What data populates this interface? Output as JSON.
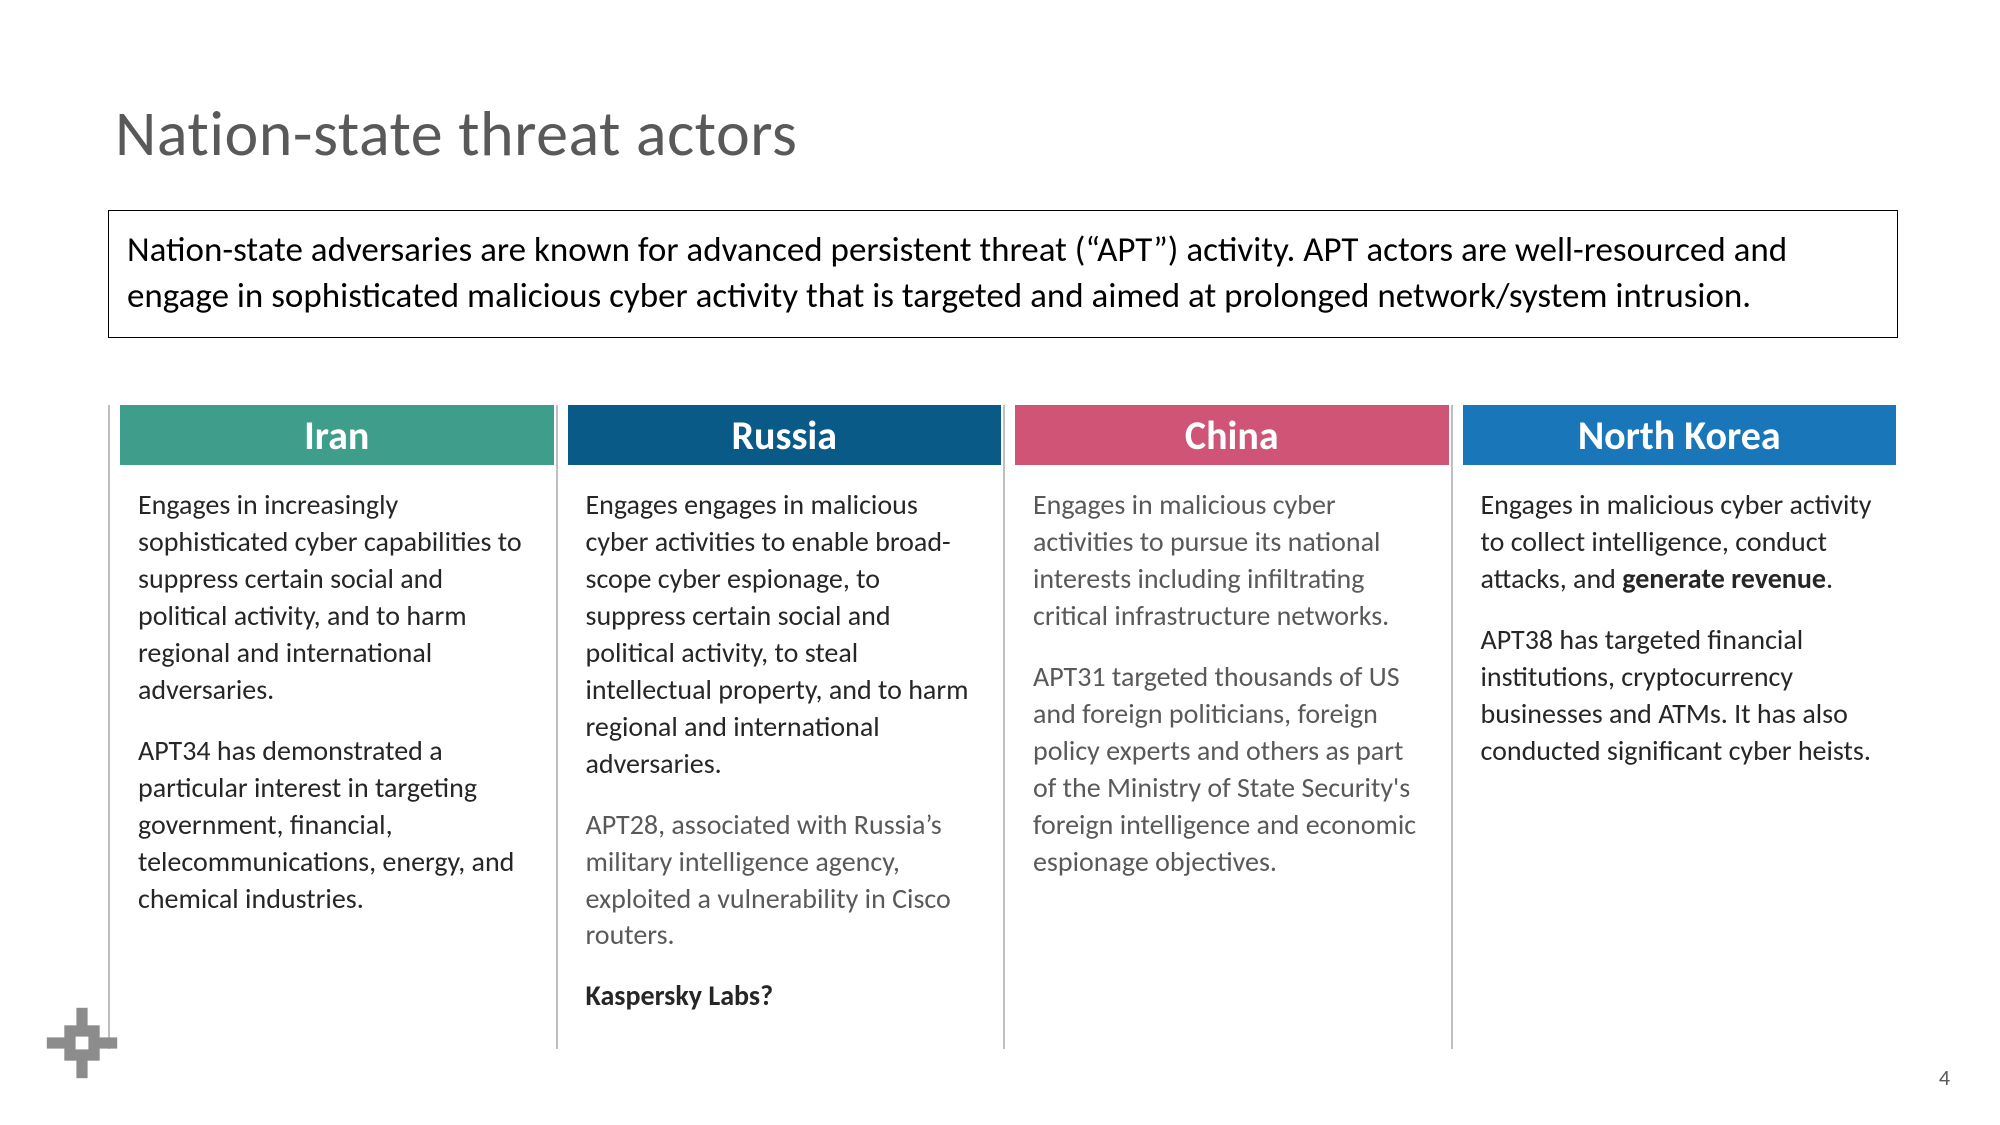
{
  "title": "Nation-state threat actors",
  "intro": "Nation-state adversaries are known for advanced persistent threat (“APT”) activity. APT actors are well-resourced and engage in sophisticated malicious cyber activity that is targeted and aimed at prolonged network/system intrusion.",
  "page_number": "4",
  "styling": {
    "background_color": "#ffffff",
    "title_color": "#595959",
    "title_fontsize": 64,
    "intro_border_color": "#000000",
    "intro_fontsize": 35,
    "body_fontsize": 28,
    "divider_color": "#bfbfbf",
    "logo_color": "#8c8c8c"
  },
  "columns": [
    {
      "name": "Iran",
      "header_color": "#3f9e8b",
      "paragraphs": [
        {
          "text": "Engages in increasingly sophisticated cyber capabilities to suppress certain social and political activity, and to harm regional and international adversaries.",
          "style": "normal"
        },
        {
          "text": "APT34 has demonstrated a particular interest in targeting government, financial, telecommunications, energy, and chemical industries.",
          "style": "normal"
        }
      ]
    },
    {
      "name": "Russia",
      "header_color": "#0a5a87",
      "paragraphs": [
        {
          "text": "Engages engages in malicious cyber activities to enable broad-scope cyber espionage, to suppress certain social and political activity, to steal intellectual property, and to harm regional and international adversaries.",
          "style": "normal"
        },
        {
          "text": "APT28, associated with Russia’s military intelligence agency, exploited a vulnerability in Cisco routers.",
          "style": "dim"
        },
        {
          "text": "Kaspersky Labs?",
          "style": "bold"
        }
      ]
    },
    {
      "name": "China",
      "header_color": "#cf5475",
      "paragraphs": [
        {
          "text": "Engages in malicious cyber activities to pursue its national interests including infiltrating critical infrastructure networks.",
          "style": "dim"
        },
        {
          "text": "APT31 targeted thousands of US and foreign politicians, foreign policy experts and others as part of the Ministry of State Security's foreign intelligence and economic espionage objectives.",
          "style": "dim"
        }
      ]
    },
    {
      "name": "North Korea",
      "header_color": "#1976b8",
      "paragraphs": [
        {
          "text_parts": [
            {
              "text": "Engages in malicious cyber activity to collect intelligence, conduct attacks, and ",
              "bold": false
            },
            {
              "text": "generate revenue",
              "bold": true
            },
            {
              "text": ".",
              "bold": false
            }
          ],
          "style": "inline"
        },
        {
          "text": "APT38 has targeted financial institutions, cryptocurrency businesses and ATMs. It has also conducted significant cyber heists.",
          "style": "normal"
        }
      ]
    }
  ]
}
